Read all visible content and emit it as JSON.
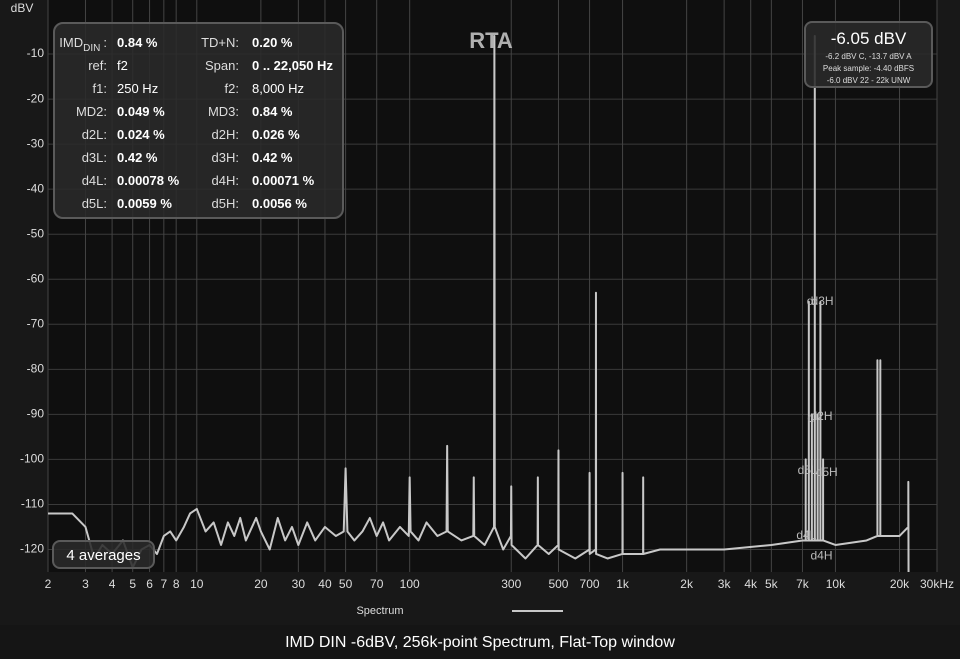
{
  "chart_data": {
    "type": "line",
    "title": "RTA",
    "y_label": "dBV",
    "xscale": "log",
    "grid": true,
    "xlim": [
      2,
      30000
    ],
    "ylim": [
      -125,
      2
    ],
    "xticks": [
      2,
      3,
      4,
      5,
      6,
      7,
      8,
      10,
      20,
      30,
      40,
      50,
      70,
      100,
      300,
      500,
      700,
      {
        "value": 1000,
        "label": "1k"
      },
      {
        "value": 2000,
        "label": "2k"
      },
      {
        "value": 3000,
        "label": "3k"
      },
      {
        "value": 4000,
        "label": "4k"
      },
      {
        "value": 5000,
        "label": "5k"
      },
      {
        "value": 7000,
        "label": "7k"
      },
      {
        "value": 10000,
        "label": "10k"
      },
      {
        "value": 20000,
        "label": "20k"
      },
      {
        "value": 30000,
        "label": "30kHz"
      }
    ],
    "yticks": [
      -10,
      -20,
      -30,
      -40,
      -50,
      -60,
      -70,
      -80,
      -90,
      -100,
      -110,
      -120
    ],
    "x": [
      2,
      2.6,
      3,
      3.3,
      3.6,
      4,
      4.5,
      5,
      5.5,
      6,
      6.5,
      7,
      7.5,
      8,
      8.7,
      9.3,
      10,
      11,
      12,
      13,
      14,
      15,
      16,
      17,
      19,
      20,
      22,
      24,
      26,
      28,
      30,
      33,
      36,
      40,
      45,
      49,
      50,
      51,
      55,
      60,
      65,
      70,
      75,
      80,
      90,
      99,
      100,
      101,
      110,
      120,
      135,
      149,
      150,
      151,
      175,
      199,
      200,
      201,
      225,
      249,
      250,
      251,
      275,
      299,
      300,
      301,
      350,
      399,
      400,
      401,
      450,
      499,
      500,
      501,
      600,
      699,
      700,
      701,
      749,
      750,
      751,
      850,
      999,
      1000,
      1001,
      1249,
      1250,
      1251,
      1500,
      2000,
      3000,
      5000,
      7000,
      7249,
      7250,
      7251,
      7499,
      7500,
      7501,
      7749,
      7750,
      7751,
      7999,
      8000,
      8001,
      8249,
      8250,
      8251,
      8499,
      8500,
      8501,
      8749,
      8750,
      8751,
      10000,
      14000,
      15749,
      15750,
      15751,
      16249,
      16250,
      16251,
      20000,
      21999,
      22000,
      22050
    ],
    "series": [
      {
        "name": "Spectrum",
        "color": "#c8c8c8",
        "values": [
          -112,
          -112,
          -115,
          -122,
          -119,
          -121,
          -118,
          -124,
          -120,
          -119,
          -121,
          -117,
          -116,
          -118,
          -115,
          -112,
          -111,
          -116,
          -114,
          -119,
          -114,
          -117,
          -113,
          -118,
          -113,
          -116,
          -120,
          -113,
          -118,
          -115,
          -119,
          -114,
          -118,
          -115,
          -117,
          -116,
          -102,
          -116,
          -118,
          -116,
          -113,
          -117,
          -114,
          -118,
          -115,
          -117,
          -104,
          -116,
          -118,
          -114,
          -117,
          -116,
          -97,
          -116,
          -118,
          -117,
          -104,
          -117,
          -119,
          -115,
          -6,
          -115,
          -120,
          -117,
          -106,
          -119,
          -122,
          -119,
          -104,
          -119,
          -121,
          -119,
          -98,
          -120,
          -122,
          -120,
          -103,
          -121,
          -120,
          -63,
          -121,
          -122,
          -121,
          -103,
          -121,
          -121,
          -104,
          -121,
          -120,
          -120,
          -120,
          -119,
          -118,
          -118,
          -100,
          -118,
          -118,
          -65,
          -118,
          -118,
          -90,
          -118,
          -118,
          -6,
          -118,
          -118,
          -90,
          -118,
          -118,
          -65,
          -118,
          -118,
          -100,
          -118,
          -119,
          -118,
          -117,
          -78,
          -117,
          -117,
          -78,
          -117,
          -117,
          -115,
          -105,
          -125
        ]
      }
    ],
    "annotations": [
      {
        "text": "d",
        "x": 7600,
        "y": -65
      },
      {
        "text": "d3H",
        "x": 8700,
        "y": -65
      },
      {
        "text": "d",
        "x": 7650,
        "y": -91
      },
      {
        "text": "d2H",
        "x": 8600,
        "y": -90.5
      },
      {
        "text": "d5L",
        "x": 7400,
        "y": -102.5
      },
      {
        "text": "d5H",
        "x": 9100,
        "y": -103
      },
      {
        "text": "d4L",
        "x": 7300,
        "y": -117
      },
      {
        "text": "d4H",
        "x": 8600,
        "y": -121.5
      }
    ]
  },
  "stats": {
    "first_label_sub": "DIN",
    "first_label_sep": ":",
    "rows": [
      [
        "IMD",
        "0.84 %",
        "TD+N:",
        "0.20 %"
      ],
      [
        "ref:",
        "f2",
        "Span:",
        "0 .. 22,050 Hz"
      ],
      [
        "f1:",
        "250 Hz",
        "f2:",
        "8,000 Hz"
      ],
      [
        "MD2:",
        "0.049 %",
        "MD3:",
        "0.84 %"
      ],
      [
        "d2L:",
        "0.024 %",
        "d2H:",
        "0.026 %"
      ],
      [
        "d3L:",
        "0.42 %",
        "d3H:",
        "0.42 %"
      ],
      [
        "d4L:",
        "0.00078 %",
        "d4H:",
        "0.00071 %"
      ],
      [
        "d5L:",
        "0.0059 %",
        "d5H:",
        "0.0056 %"
      ]
    ]
  },
  "readout": {
    "main": "-6.05 dBV",
    "lines": [
      "-6.2 dBV C, -13.7 dBV A",
      "Peak sample: -4.40 dBFS",
      "-6.0 dBV 22 - 22k UNW"
    ]
  },
  "averages": "4 averages",
  "caption": "IMD DIN -6dBV, 256k-point Spectrum, Flat-Top window"
}
